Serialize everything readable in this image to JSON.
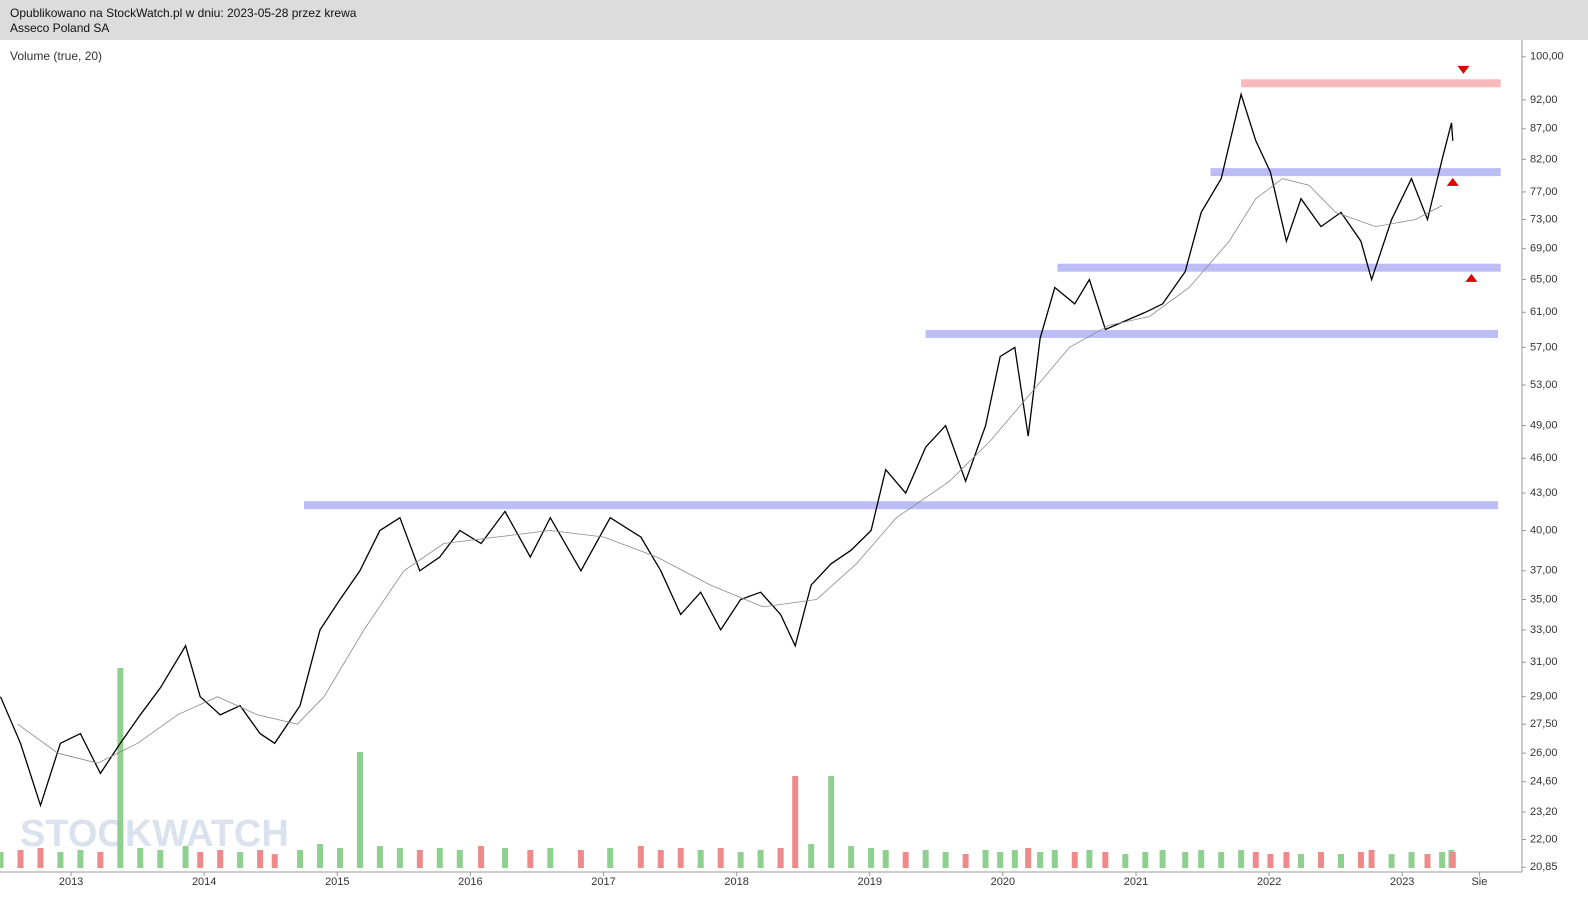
{
  "header": {
    "line1": "Opublikowano na StockWatch.pl w dniu: 2023-05-28 przez krewa",
    "line2": "Asseco Poland SA"
  },
  "chart_data": {
    "type": "line",
    "subtitle": "Volume (true, 20)",
    "watermark": "STOCKWATCH",
    "log_y": true,
    "grid": false,
    "xlim": [
      2012.466,
      2023.9
    ],
    "ylim": [
      20.66,
      103.3
    ],
    "xticks": [
      2013,
      2014,
      2015,
      2016,
      2017,
      2018,
      2019,
      2020,
      2021,
      2022,
      2023,
      {
        "value": 2023.58,
        "label": "Sie"
      }
    ],
    "yticks": [
      {
        "value": 100,
        "label": "100,00"
      },
      {
        "value": 92,
        "label": "92,00"
      },
      {
        "value": 87,
        "label": "87,00"
      },
      {
        "value": 82,
        "label": "82,00"
      },
      {
        "value": 77,
        "label": "77,00"
      },
      {
        "value": 73,
        "label": "73,00"
      },
      {
        "value": 69,
        "label": "69,00"
      },
      {
        "value": 65,
        "label": "65,00"
      },
      {
        "value": 61,
        "label": "61,00"
      },
      {
        "value": 57,
        "label": "57,00"
      },
      {
        "value": 53,
        "label": "53,00"
      },
      {
        "value": 49,
        "label": "49,00"
      },
      {
        "value": 46,
        "label": "46,00"
      },
      {
        "value": 43,
        "label": "43,00"
      },
      {
        "value": 40,
        "label": "40,00"
      },
      {
        "value": 37,
        "label": "37,00"
      },
      {
        "value": 35,
        "label": "35,00"
      },
      {
        "value": 33,
        "label": "33,00"
      },
      {
        "value": 31,
        "label": "31,00"
      },
      {
        "value": 29,
        "label": "29,00"
      },
      {
        "value": 27.5,
        "label": "27,50"
      },
      {
        "value": 26,
        "label": "26,00"
      },
      {
        "value": 24.6,
        "label": "24,60"
      },
      {
        "value": 23.2,
        "label": "23,20"
      },
      {
        "value": 22,
        "label": "22,00"
      },
      {
        "value": 20.85,
        "label": "20,85"
      }
    ],
    "series": [
      {
        "color": "#000000",
        "width": 1.3,
        "x": [
          2012.47,
          2012.62,
          2012.77,
          2012.92,
          2013.07,
          2013.22,
          2013.37,
          2013.52,
          2013.67,
          2013.86,
          2013.97,
          2014.12,
          2014.27,
          2014.42,
          2014.53,
          2014.72,
          2014.87,
          2015.02,
          2015.17,
          2015.32,
          2015.47,
          2015.62,
          2015.77,
          2015.92,
          2016.08,
          2016.26,
          2016.45,
          2016.6,
          2016.83,
          2017.05,
          2017.28,
          2017.43,
          2017.58,
          2017.73,
          2017.88,
          2018.03,
          2018.18,
          2018.33,
          2018.44,
          2018.56,
          2018.71,
          2018.86,
          2019.01,
          2019.12,
          2019.27,
          2019.42,
          2019.57,
          2019.72,
          2019.87,
          2019.98,
          2020.09,
          2020.19,
          2020.28,
          2020.39,
          2020.54,
          2020.65,
          2020.77,
          2020.92,
          2021.07,
          2021.2,
          2021.37,
          2021.49,
          2021.64,
          2021.79,
          2021.9,
          2022.01,
          2022.13,
          2022.24,
          2022.39,
          2022.54,
          2022.69,
          2022.77,
          2022.92,
          2023.07,
          2023.19,
          2023.3,
          2023.37,
          2023.38
        ],
        "values": [
          29,
          26.5,
          23.5,
          26.5,
          27,
          25,
          26.5,
          28,
          29.5,
          32,
          29,
          28,
          28.5,
          27,
          26.5,
          28.5,
          33,
          35,
          37,
          40,
          41,
          37,
          38,
          40,
          39,
          41.5,
          38,
          41,
          37,
          41,
          39.5,
          37,
          34,
          35.5,
          33,
          35,
          35.5,
          34,
          32,
          36,
          37.5,
          38.5,
          40,
          45,
          43,
          47,
          49,
          44,
          49,
          56,
          57,
          48,
          58,
          64,
          62,
          65,
          59,
          60,
          61,
          62,
          66,
          74,
          79,
          93,
          85,
          80,
          70,
          76,
          72,
          74,
          70,
          65,
          73,
          79,
          73,
          82,
          88,
          85
        ]
      },
      {
        "color": "#8a8a8a",
        "width": 0.8,
        "x": [
          2012.6,
          2012.9,
          2013.2,
          2013.5,
          2013.8,
          2014.1,
          2014.4,
          2014.7,
          2014.9,
          2015.2,
          2015.5,
          2015.8,
          2016.2,
          2016.6,
          2017.0,
          2017.4,
          2017.8,
          2018.2,
          2018.6,
          2018.9,
          2019.2,
          2019.6,
          2019.9,
          2020.2,
          2020.5,
          2020.8,
          2021.1,
          2021.4,
          2021.7,
          2021.9,
          2022.1,
          2022.3,
          2022.5,
          2022.8,
          2023.1,
          2023.3
        ],
        "values": [
          27.5,
          26,
          25.5,
          26.5,
          28,
          29,
          28,
          27.5,
          29,
          33,
          37,
          39,
          39.5,
          40,
          39.5,
          38,
          36,
          34.5,
          35,
          37.5,
          41,
          44,
          47.5,
          52,
          57,
          59.5,
          60.5,
          64,
          70,
          76,
          79,
          78,
          74,
          72,
          73,
          75
        ]
      }
    ],
    "volume": {
      "vlim": [
        0,
        100
      ],
      "up_color": "#8fcf8f",
      "down_color": "#f08a8a",
      "values": [
        8,
        9,
        10,
        8,
        9,
        8,
        100,
        10,
        9,
        11,
        8,
        9,
        8,
        9,
        7,
        9,
        12,
        10,
        58,
        11,
        10,
        9,
        10,
        9,
        11,
        10,
        9,
        10,
        9,
        10,
        11,
        9,
        10,
        9,
        10,
        8,
        9,
        10,
        46,
        12,
        46,
        11,
        10,
        9,
        8,
        9,
        8,
        7,
        9,
        8,
        9,
        10,
        8,
        9,
        8,
        9,
        8,
        7,
        8,
        9,
        8,
        9,
        8,
        9,
        8,
        7,
        8,
        7,
        8,
        7,
        8,
        9,
        7,
        8,
        7,
        8,
        9,
        8
      ]
    },
    "levels": [
      {
        "value": 95,
        "from": 2021.79,
        "to": 2023.74,
        "color": "#f7b9b9"
      },
      {
        "value": 80,
        "from": 2021.56,
        "to": 2023.74,
        "color": "#bcbcf7"
      },
      {
        "value": 66.5,
        "from": 2020.41,
        "to": 2023.74,
        "color": "#bcbcf7"
      },
      {
        "value": 58.5,
        "from": 2019.42,
        "to": 2023.72,
        "color": "#bcbcf7"
      },
      {
        "value": 42,
        "from": 2014.75,
        "to": 2023.72,
        "color": "#bcbcf7"
      }
    ],
    "markers": [
      {
        "x": 2023.46,
        "value": 97.5,
        "direction": "down",
        "color": "#e00000"
      },
      {
        "x": 2023.38,
        "value": 78.5,
        "direction": "up",
        "color": "#e00000"
      },
      {
        "x": 2023.52,
        "value": 65.2,
        "direction": "up",
        "color": "#e00000"
      }
    ]
  }
}
